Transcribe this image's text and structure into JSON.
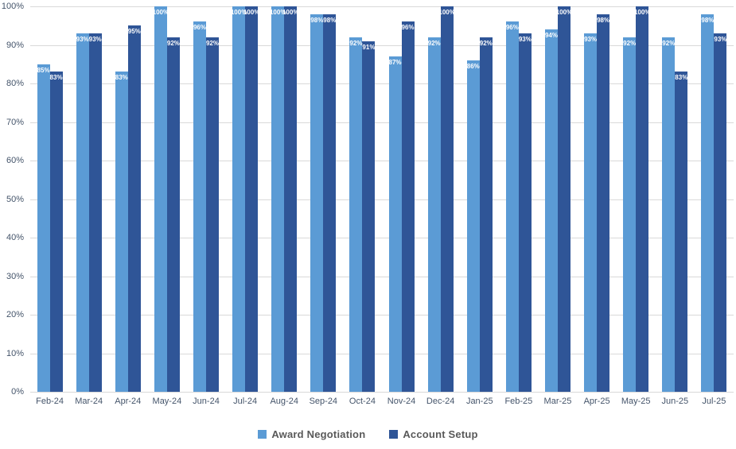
{
  "chart_data": {
    "type": "bar",
    "title": "",
    "xlabel": "",
    "ylabel": "",
    "ylim": [
      0,
      100
    ],
    "grid": true,
    "legend_position": "bottom",
    "value_suffix": "%",
    "ytick_labels": [
      "0%",
      "10%",
      "20%",
      "30%",
      "40%",
      "50%",
      "60%",
      "70%",
      "80%",
      "90%",
      "100%"
    ],
    "categories": [
      "Feb-24",
      "Mar-24",
      "Apr-24",
      "May-24",
      "Jun-24",
      "Jul-24",
      "Aug-24",
      "Sep-24",
      "Oct-24",
      "Nov-24",
      "Dec-24",
      "Jan-25",
      "Feb-25",
      "Mar-25",
      "Apr-25",
      "May-25",
      "Jun-25",
      "Jul-25"
    ],
    "series": [
      {
        "name": "Award Negotiation",
        "color": "#5B9BD5",
        "values": [
          85,
          93,
          83,
          100,
          96,
          100,
          100,
          98,
          92,
          87,
          92,
          86,
          96,
          94,
          93,
          92,
          92,
          98
        ]
      },
      {
        "name": "Account Setup",
        "color": "#2F5597",
        "values": [
          83,
          93,
          95,
          92,
          92,
          100,
          100,
          98,
          91,
          96,
          100,
          92,
          93,
          100,
          98,
          100,
          83,
          93
        ]
      }
    ]
  },
  "colors": {
    "gridline": "#d9d9d9",
    "axis_text": "#44546A",
    "legend_text": "#595959",
    "data_label": "#ffffff",
    "background": "#ffffff"
  }
}
